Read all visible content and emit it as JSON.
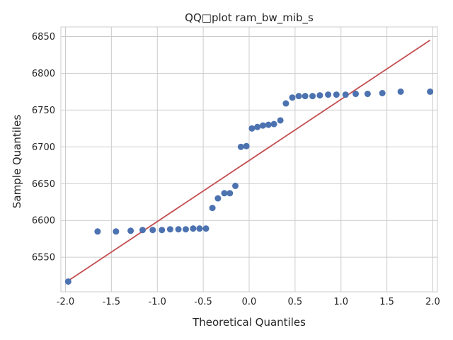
{
  "chart_data": {
    "type": "scatter",
    "title": "QQ□plot ram_bw_mib_s",
    "xlabel": "Theoretical Quantiles",
    "ylabel": "Sample Quantiles",
    "xlim": [
      -2.05,
      2.05
    ],
    "ylim": [
      6503,
      6863
    ],
    "x_ticks": [
      "-2.0",
      "-1.5",
      "-1.0",
      "-0.5",
      "0.0",
      "0.5",
      "1.0",
      "1.5",
      "2.0"
    ],
    "y_ticks": [
      "6550",
      "6600",
      "6650",
      "6700",
      "6750",
      "6800",
      "6850"
    ],
    "grid": true,
    "point_color": "#4c72b0",
    "line_color": "#c44e52",
    "reference_line": {
      "x": [
        -1.97,
        1.97
      ],
      "y": [
        6518,
        6845
      ]
    },
    "points": {
      "x": [
        -1.97,
        -1.65,
        -1.45,
        -1.29,
        -1.16,
        -1.05,
        -0.95,
        -0.86,
        -0.77,
        -0.69,
        -0.61,
        -0.54,
        -0.47,
        -0.4,
        -0.34,
        -0.27,
        -0.21,
        -0.15,
        -0.09,
        -0.03,
        0.03,
        0.09,
        0.15,
        0.21,
        0.27,
        0.34,
        0.4,
        0.47,
        0.54,
        0.61,
        0.69,
        0.77,
        0.86,
        0.95,
        1.05,
        1.16,
        1.29,
        1.45,
        1.65,
        1.97
      ],
      "y": [
        6517,
        6585,
        6585,
        6586,
        6587,
        6587,
        6587,
        6588,
        6588,
        6588,
        6589,
        6589,
        6589,
        6617,
        6630,
        6637,
        6637,
        6647,
        6700,
        6701,
        6725,
        6727,
        6729,
        6730,
        6731,
        6736,
        6759,
        6767,
        6769,
        6769,
        6769,
        6770,
        6771,
        6771,
        6771,
        6772,
        6772,
        6773,
        6775,
        6775
      ]
    }
  }
}
